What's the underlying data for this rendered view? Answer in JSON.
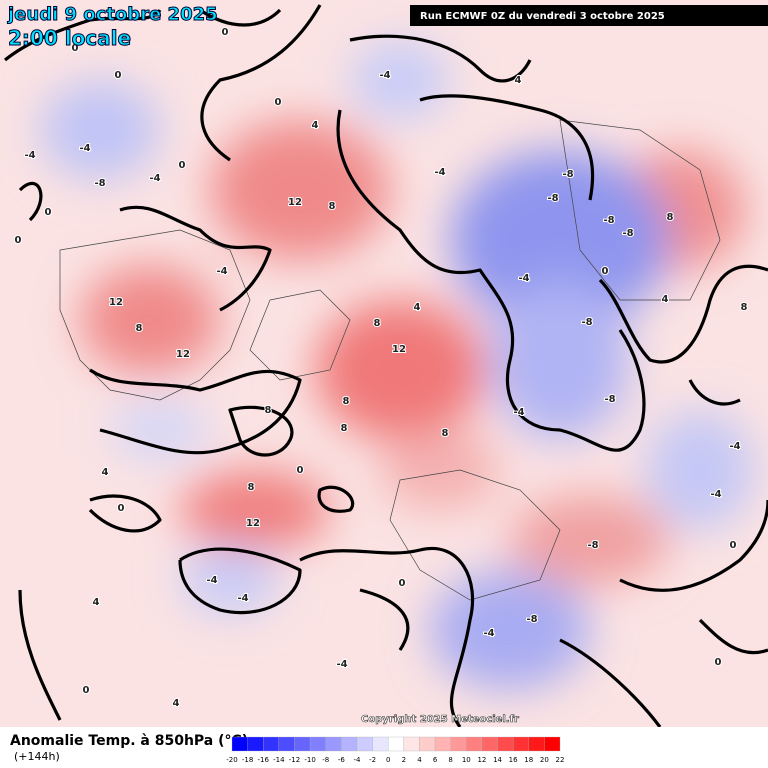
{
  "header": {
    "date": "jeudi 9 octobre 2025",
    "time": "2:00 locale",
    "run": "Run ECMWF 0Z du vendredi 3 octobre 2025"
  },
  "map": {
    "contour_labels": [
      0,
      0,
      0,
      0,
      -4,
      -4,
      -8,
      -4,
      0,
      0,
      0,
      4,
      12,
      8,
      -4,
      -4,
      4,
      -8,
      -8,
      -8,
      -8,
      8,
      0,
      12,
      12,
      8,
      -4,
      8,
      12,
      4,
      8,
      8,
      8,
      -4,
      -8,
      -8,
      -4,
      8,
      12,
      0,
      4,
      -4,
      -4,
      -8,
      -4,
      -4,
      0,
      4,
      -4,
      -8,
      -4,
      0,
      4,
      8,
      8,
      0,
      0,
      4,
      0
    ],
    "copyright": "Copyright 2025 Meteociel.fr"
  },
  "legend": {
    "title": "Anomalie Temp. à 850hPa (°C)",
    "lead": "(+144h)",
    "ticks": [
      -20,
      -18,
      -16,
      -14,
      -12,
      -10,
      -8,
      -6,
      -4,
      -2,
      0,
      2,
      4,
      6,
      8,
      10,
      12,
      14,
      16,
      18,
      20,
      22
    ],
    "colors": [
      "#0000ff",
      "#1a1aff",
      "#3333ff",
      "#4d4dff",
      "#6666ff",
      "#8080ff",
      "#9999ff",
      "#b3b3ff",
      "#ccccff",
      "#e6e6ff",
      "#ffffff",
      "#ffe6e6",
      "#ffcccc",
      "#ffb3b3",
      "#ff9999",
      "#ff8080",
      "#ff6666",
      "#ff4d4d",
      "#ff3333",
      "#ff1a1a",
      "#ff0000"
    ]
  }
}
